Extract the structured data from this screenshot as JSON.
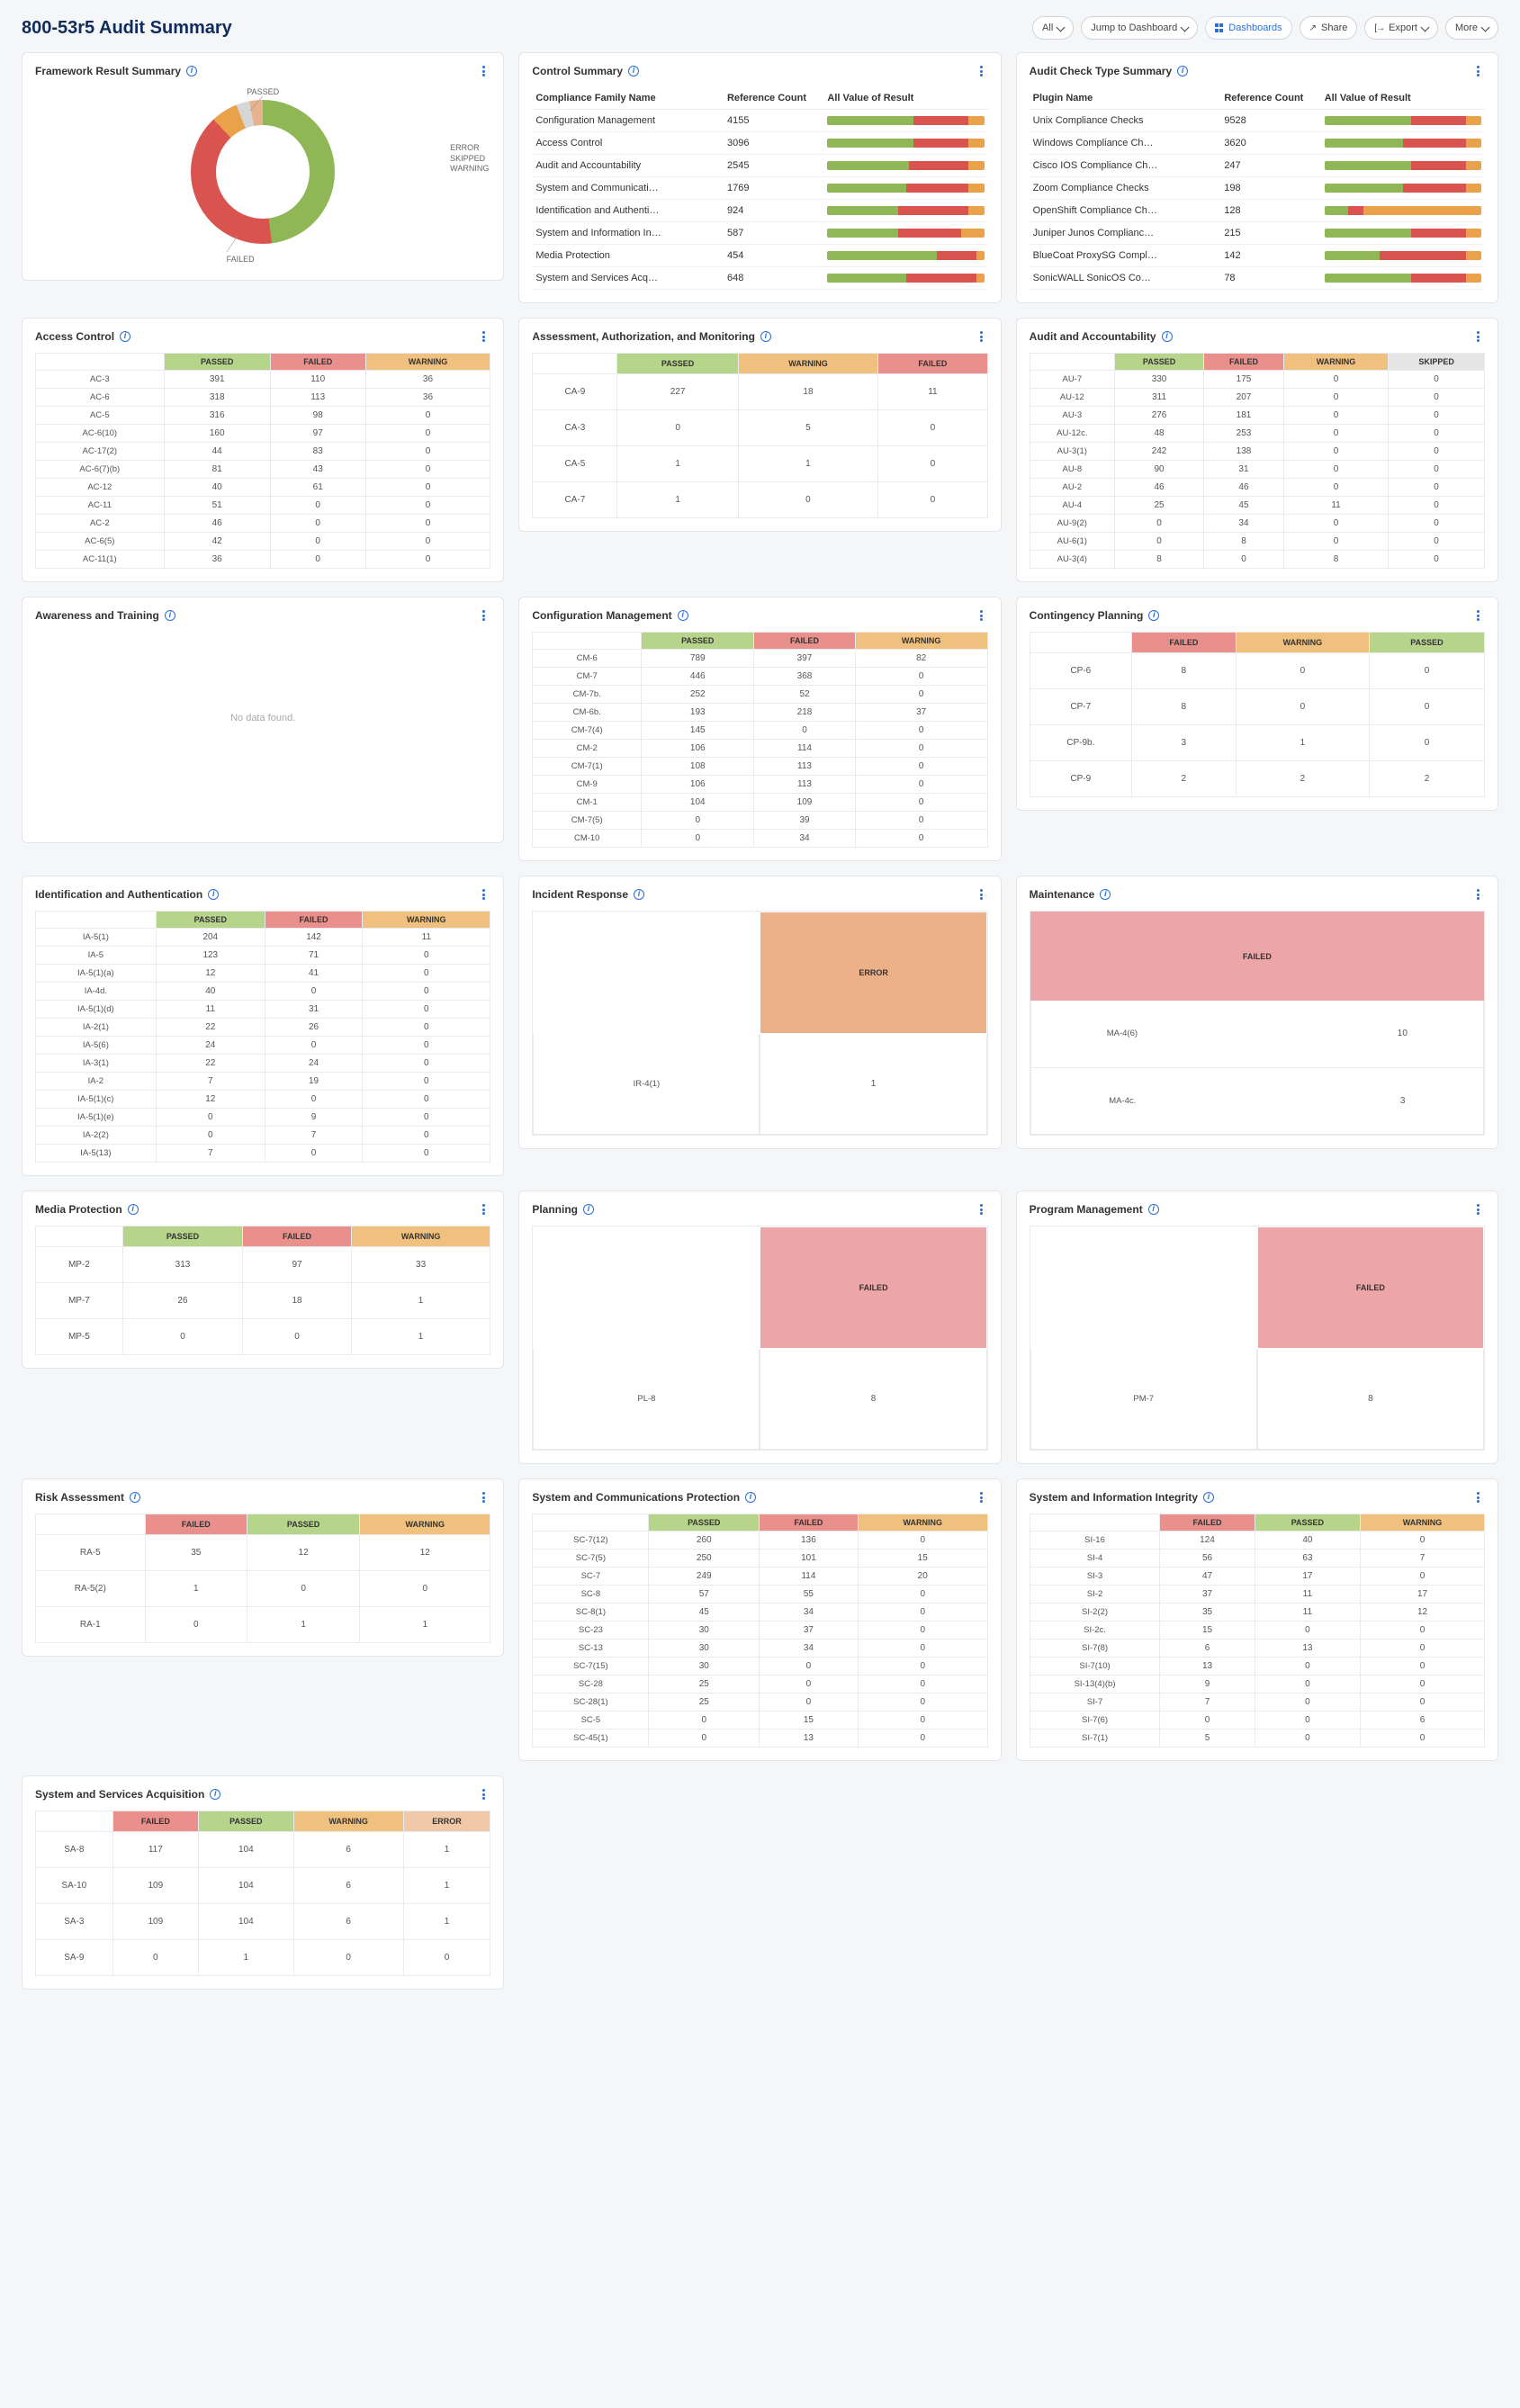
{
  "page_title": "800-53r5 Audit Summary",
  "toolbar": {
    "all": "All",
    "jump": "Jump to Dashboard",
    "dashboards": "Dashboards",
    "share": "Share",
    "export": "Export",
    "more": "More"
  },
  "colors": {
    "passed": "#8fb755",
    "failed": "#d9534f",
    "warning": "#e9a24a",
    "error": "#e7b38e",
    "skipped": "#d6d6d6",
    "passed_hdr": "#b7d48b",
    "failed_hdr": "#e98f8c",
    "warning_hdr": "#f0c17e",
    "error_hdr": "#f0c9a8",
    "skipped_hdr": "#e5e5e5",
    "failed_block": "#eda6a7",
    "error_block": "#edb18a"
  },
  "donut": {
    "title": "Framework Result Summary",
    "labels": {
      "passed": "PASSED",
      "failed": "FAILED",
      "error": "ERROR",
      "skipped": "SKIPPED",
      "warning": "WARNING"
    },
    "segments": [
      {
        "k": "passed",
        "pct": 48,
        "color": "#8fb755"
      },
      {
        "k": "failed",
        "pct": 40,
        "color": "#d9534f"
      },
      {
        "k": "warning",
        "pct": 6,
        "color": "#e9a24a"
      },
      {
        "k": "skipped",
        "pct": 3,
        "color": "#d6d6d6"
      },
      {
        "k": "error",
        "pct": 3,
        "color": "#e7b38e"
      }
    ]
  },
  "control_summary": {
    "title": "Control Summary",
    "headers": [
      "Compliance Family Name",
      "Reference Count",
      "All Value of Result"
    ],
    "rows": [
      {
        "name": "Configuration Management",
        "count": 4155,
        "bar": [
          55,
          35,
          10
        ]
      },
      {
        "name": "Access Control",
        "count": 3096,
        "bar": [
          55,
          35,
          10
        ]
      },
      {
        "name": "Audit and Accountability",
        "count": 2545,
        "bar": [
          52,
          38,
          10
        ]
      },
      {
        "name": "System and Communicati…",
        "count": 1769,
        "bar": [
          50,
          40,
          10
        ]
      },
      {
        "name": "Identification and Authenti…",
        "count": 924,
        "bar": [
          45,
          45,
          10
        ]
      },
      {
        "name": "System and Information In…",
        "count": 587,
        "bar": [
          45,
          40,
          15
        ]
      },
      {
        "name": "Media Protection",
        "count": 454,
        "bar": [
          70,
          25,
          5
        ]
      },
      {
        "name": "System and Services Acq…",
        "count": 648,
        "bar": [
          50,
          45,
          5
        ]
      }
    ]
  },
  "plugin_summary": {
    "title": "Audit Check Type Summary",
    "headers": [
      "Plugin Name",
      "Reference Count",
      "All Value of Result"
    ],
    "rows": [
      {
        "name": "Unix Compliance Checks",
        "count": 9528,
        "bar": [
          55,
          35,
          10
        ]
      },
      {
        "name": "Windows Compliance Ch…",
        "count": 3620,
        "bar": [
          50,
          40,
          10
        ]
      },
      {
        "name": "Cisco IOS Compliance Ch…",
        "count": 247,
        "bar": [
          55,
          35,
          10
        ]
      },
      {
        "name": "Zoom Compliance Checks",
        "count": 198,
        "bar": [
          50,
          40,
          10
        ]
      },
      {
        "name": "OpenShift Compliance Ch…",
        "count": 128,
        "bar": [
          15,
          10,
          75
        ]
      },
      {
        "name": "Juniper Junos Complianc…",
        "count": 215,
        "bar": [
          55,
          35,
          10
        ]
      },
      {
        "name": "BlueCoat ProxySG Compl…",
        "count": 142,
        "bar": [
          35,
          55,
          10
        ]
      },
      {
        "name": "SonicWALL SonicOS Co…",
        "count": 78,
        "bar": [
          55,
          35,
          10
        ]
      }
    ]
  },
  "access_control": {
    "title": "Access Control",
    "headers": [
      "",
      "PASSED",
      "FAILED",
      "WARNING"
    ],
    "header_colors": [
      "",
      "passed_hdr",
      "failed_hdr",
      "warning_hdr"
    ],
    "rows": [
      [
        "AC-3",
        "391",
        "110",
        "36"
      ],
      [
        "AC-6",
        "318",
        "113",
        "36"
      ],
      [
        "AC-5",
        "316",
        "98",
        "0"
      ],
      [
        "AC-6(10)",
        "160",
        "97",
        "0"
      ],
      [
        "AC-17(2)",
        "44",
        "83",
        "0"
      ],
      [
        "AC-6(7)(b)",
        "81",
        "43",
        "0"
      ],
      [
        "AC-12",
        "40",
        "61",
        "0"
      ],
      [
        "AC-11",
        "51",
        "0",
        "0"
      ],
      [
        "AC-2",
        "46",
        "0",
        "0"
      ],
      [
        "AC-6(5)",
        "42",
        "0",
        "0"
      ],
      [
        "AC-11(1)",
        "36",
        "0",
        "0"
      ]
    ]
  },
  "assessment": {
    "title": "Assessment, Authorization, and Monitoring",
    "headers": [
      "",
      "PASSED",
      "WARNING",
      "FAILED"
    ],
    "header_colors": [
      "",
      "passed_hdr",
      "warning_hdr",
      "failed_hdr"
    ],
    "rows": [
      [
        "CA-9",
        "227",
        "18",
        "11"
      ],
      [
        "CA-3",
        "0",
        "5",
        "0"
      ],
      [
        "CA-5",
        "1",
        "1",
        "0"
      ],
      [
        "CA-7",
        "1",
        "0",
        "0"
      ]
    ]
  },
  "audit_account": {
    "title": "Audit and Accountability",
    "headers": [
      "",
      "PASSED",
      "FAILED",
      "WARNING",
      "SKIPPED"
    ],
    "header_colors": [
      "",
      "passed_hdr",
      "failed_hdr",
      "warning_hdr",
      "skipped_hdr"
    ],
    "rows": [
      [
        "AU-7",
        "330",
        "175",
        "0",
        "0"
      ],
      [
        "AU-12",
        "311",
        "207",
        "0",
        "0"
      ],
      [
        "AU-3",
        "276",
        "181",
        "0",
        "0"
      ],
      [
        "AU-12c.",
        "48",
        "253",
        "0",
        "0"
      ],
      [
        "AU-3(1)",
        "242",
        "138",
        "0",
        "0"
      ],
      [
        "AU-8",
        "90",
        "31",
        "0",
        "0"
      ],
      [
        "AU-2",
        "46",
        "46",
        "0",
        "0"
      ],
      [
        "AU-4",
        "25",
        "45",
        "11",
        "0"
      ],
      [
        "AU-9(2)",
        "0",
        "34",
        "0",
        "0"
      ],
      [
        "AU-6(1)",
        "0",
        "8",
        "0",
        "0"
      ],
      [
        "AU-3(4)",
        "8",
        "0",
        "8",
        "0"
      ]
    ]
  },
  "awareness": {
    "title": "Awareness and Training",
    "nodata": "No data found."
  },
  "config_mgmt": {
    "title": "Configuration Management",
    "headers": [
      "",
      "PASSED",
      "FAILED",
      "WARNING"
    ],
    "header_colors": [
      "",
      "passed_hdr",
      "failed_hdr",
      "warning_hdr"
    ],
    "rows": [
      [
        "CM-6",
        "789",
        "397",
        "82"
      ],
      [
        "CM-7",
        "446",
        "368",
        "0"
      ],
      [
        "CM-7b.",
        "252",
        "52",
        "0"
      ],
      [
        "CM-6b.",
        "193",
        "218",
        "37"
      ],
      [
        "CM-7(4)",
        "145",
        "0",
        "0"
      ],
      [
        "CM-2",
        "106",
        "114",
        "0"
      ],
      [
        "CM-7(1)",
        "108",
        "113",
        "0"
      ],
      [
        "CM-9",
        "106",
        "113",
        "0"
      ],
      [
        "CM-1",
        "104",
        "109",
        "0"
      ],
      [
        "CM-7(5)",
        "0",
        "39",
        "0"
      ],
      [
        "CM-10",
        "0",
        "34",
        "0"
      ]
    ]
  },
  "contingency": {
    "title": "Contingency Planning",
    "headers": [
      "",
      "FAILED",
      "WARNING",
      "PASSED"
    ],
    "header_colors": [
      "",
      "failed_hdr",
      "warning_hdr",
      "passed_hdr"
    ],
    "rows": [
      [
        "CP-6",
        "8",
        "0",
        "0"
      ],
      [
        "CP-7",
        "8",
        "0",
        "0"
      ],
      [
        "CP-9b.",
        "3",
        "1",
        "0"
      ],
      [
        "CP-9",
        "2",
        "2",
        "2"
      ]
    ]
  },
  "incident_response": {
    "title": "Incident Response",
    "top_label": "ERROR",
    "top_color": "error_block",
    "row_label": "IR-4(1)",
    "row_value": "1"
  },
  "maintenance": {
    "title": "Maintenance",
    "top_label": "FAILED",
    "top_color": "failed_block",
    "rows": [
      [
        "MA-4(6)",
        "10"
      ],
      [
        "MA-4c.",
        "3"
      ]
    ]
  },
  "identification": {
    "title": "Identification and Authentication",
    "headers": [
      "",
      "PASSED",
      "FAILED",
      "WARNING"
    ],
    "header_colors": [
      "",
      "passed_hdr",
      "failed_hdr",
      "warning_hdr"
    ],
    "rows": [
      [
        "IA-5(1)",
        "204",
        "142",
        "11"
      ],
      [
        "IA-5",
        "123",
        "71",
        "0"
      ],
      [
        "IA-5(1)(a)",
        "12",
        "41",
        "0"
      ],
      [
        "IA-4d.",
        "40",
        "0",
        "0"
      ],
      [
        "IA-5(1)(d)",
        "11",
        "31",
        "0"
      ],
      [
        "IA-2(1)",
        "22",
        "26",
        "0"
      ],
      [
        "IA-5(6)",
        "24",
        "0",
        "0"
      ],
      [
        "IA-3(1)",
        "22",
        "24",
        "0"
      ],
      [
        "IA-2",
        "7",
        "19",
        "0"
      ],
      [
        "IA-5(1)(c)",
        "12",
        "0",
        "0"
      ],
      [
        "IA-5(1)(e)",
        "0",
        "9",
        "0"
      ],
      [
        "IA-2(2)",
        "0",
        "7",
        "0"
      ],
      [
        "IA-5(13)",
        "7",
        "0",
        "0"
      ]
    ]
  },
  "planning": {
    "title": "Planning",
    "top_label": "FAILED",
    "top_color": "failed_block",
    "row_label": "PL-8",
    "row_value": "8"
  },
  "program_mgmt": {
    "title": "Program Management",
    "top_label": "FAILED",
    "top_color": "failed_block",
    "row_label": "PM-7",
    "row_value": "8"
  },
  "media_protection": {
    "title": "Media Protection",
    "headers": [
      "",
      "PASSED",
      "FAILED",
      "WARNING"
    ],
    "header_colors": [
      "",
      "passed_hdr",
      "failed_hdr",
      "warning_hdr"
    ],
    "rows": [
      [
        "MP-2",
        "313",
        "97",
        "33"
      ],
      [
        "MP-7",
        "26",
        "18",
        "1"
      ],
      [
        "MP-5",
        "0",
        "0",
        "1"
      ]
    ]
  },
  "syscomm": {
    "title": "System and Communications Protection",
    "headers": [
      "",
      "PASSED",
      "FAILED",
      "WARNING"
    ],
    "header_colors": [
      "",
      "passed_hdr",
      "failed_hdr",
      "warning_hdr"
    ],
    "rows": [
      [
        "SC-7(12)",
        "260",
        "136",
        "0"
      ],
      [
        "SC-7(5)",
        "250",
        "101",
        "15"
      ],
      [
        "SC-7",
        "249",
        "114",
        "20"
      ],
      [
        "SC-8",
        "57",
        "55",
        "0"
      ],
      [
        "SC-8(1)",
        "45",
        "34",
        "0"
      ],
      [
        "SC-23",
        "30",
        "37",
        "0"
      ],
      [
        "SC-13",
        "30",
        "34",
        "0"
      ],
      [
        "SC-7(15)",
        "30",
        "0",
        "0"
      ],
      [
        "SC-28",
        "25",
        "0",
        "0"
      ],
      [
        "SC-28(1)",
        "25",
        "0",
        "0"
      ],
      [
        "SC-5",
        "0",
        "15",
        "0"
      ],
      [
        "SC-45(1)",
        "0",
        "13",
        "0"
      ]
    ]
  },
  "sysinfo": {
    "title": "System and Information Integrity",
    "headers": [
      "",
      "FAILED",
      "PASSED",
      "WARNING"
    ],
    "header_colors": [
      "",
      "failed_hdr",
      "passed_hdr",
      "warning_hdr"
    ],
    "rows": [
      [
        "SI-16",
        "124",
        "40",
        "0"
      ],
      [
        "SI-4",
        "56",
        "63",
        "7"
      ],
      [
        "SI-3",
        "47",
        "17",
        "0"
      ],
      [
        "SI-2",
        "37",
        "11",
        "17"
      ],
      [
        "SI-2(2)",
        "35",
        "11",
        "12"
      ],
      [
        "SI-2c.",
        "15",
        "0",
        "0"
      ],
      [
        "SI-7(8)",
        "6",
        "13",
        "0"
      ],
      [
        "SI-7(10)",
        "13",
        "0",
        "0"
      ],
      [
        "SI-13(4)(b)",
        "9",
        "0",
        "0"
      ],
      [
        "SI-7",
        "7",
        "0",
        "0"
      ],
      [
        "SI-7(6)",
        "0",
        "0",
        "6"
      ],
      [
        "SI-7(1)",
        "5",
        "0",
        "0"
      ]
    ]
  },
  "risk_assessment": {
    "title": "Risk Assessment",
    "headers": [
      "",
      "FAILED",
      "PASSED",
      "WARNING"
    ],
    "header_colors": [
      "",
      "failed_hdr",
      "passed_hdr",
      "warning_hdr"
    ],
    "rows": [
      [
        "RA-5",
        "35",
        "12",
        "12"
      ],
      [
        "RA-5(2)",
        "1",
        "0",
        "0"
      ],
      [
        "RA-1",
        "0",
        "1",
        "1"
      ]
    ]
  },
  "sys_acq": {
    "title": "System and Services Acquisition",
    "headers": [
      "",
      "FAILED",
      "PASSED",
      "WARNING",
      "ERROR"
    ],
    "header_colors": [
      "",
      "failed_hdr",
      "passed_hdr",
      "warning_hdr",
      "error_hdr"
    ],
    "rows": [
      [
        "SA-8",
        "117",
        "104",
        "6",
        "1"
      ],
      [
        "SA-10",
        "109",
        "104",
        "6",
        "1"
      ],
      [
        "SA-3",
        "109",
        "104",
        "6",
        "1"
      ],
      [
        "SA-9",
        "0",
        "1",
        "0",
        "0"
      ]
    ]
  }
}
